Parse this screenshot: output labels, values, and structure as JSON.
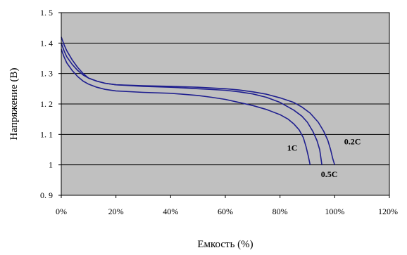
{
  "chart_data": {
    "type": "line",
    "title": "",
    "xlabel": "Емкость (%)",
    "ylabel": "Напряжение (В)",
    "xlim": [
      0,
      120
    ],
    "ylim": [
      0.9,
      1.5
    ],
    "x_ticks": [
      0,
      20,
      40,
      60,
      80,
      100,
      120
    ],
    "x_tick_labels": [
      "0%",
      "20%",
      "40%",
      "60%",
      "80%",
      "100%",
      "120%"
    ],
    "y_ticks": [
      0.9,
      1.0,
      1.1,
      1.2,
      1.3,
      1.4,
      1.5
    ],
    "y_tick_labels": [
      "0. 9",
      "1",
      "1. 1",
      "1. 2",
      "1. 3",
      "1. 4",
      "1. 5"
    ],
    "grid": "horizontal",
    "plot_background": "#c0c0c0",
    "line_color": "#1f1f8f",
    "series": [
      {
        "name": "0.2C",
        "x": [
          0,
          1,
          2,
          4,
          6,
          8,
          10,
          13,
          16,
          20,
          30,
          40,
          50,
          60,
          65,
          70,
          75,
          80,
          85,
          88,
          91,
          94,
          96,
          97.5,
          98.5,
          99.3,
          100
        ],
        "y": [
          1.42,
          1.395,
          1.375,
          1.345,
          1.32,
          1.3,
          1.285,
          1.275,
          1.268,
          1.263,
          1.26,
          1.258,
          1.255,
          1.25,
          1.246,
          1.24,
          1.232,
          1.22,
          1.205,
          1.19,
          1.17,
          1.14,
          1.11,
          1.08,
          1.05,
          1.02,
          1.0
        ]
      },
      {
        "name": "0.5C",
        "x": [
          0,
          1,
          2,
          4,
          6,
          8,
          10,
          13,
          16,
          20,
          30,
          40,
          50,
          60,
          65,
          70,
          75,
          80,
          85,
          88,
          90,
          92,
          93.5,
          94.5,
          95,
          95.3
        ],
        "y": [
          1.4,
          1.375,
          1.355,
          1.33,
          1.31,
          1.295,
          1.285,
          1.275,
          1.268,
          1.263,
          1.258,
          1.255,
          1.25,
          1.245,
          1.24,
          1.233,
          1.222,
          1.205,
          1.18,
          1.16,
          1.14,
          1.11,
          1.08,
          1.05,
          1.02,
          1.0
        ]
      },
      {
        "name": "1C",
        "x": [
          0,
          1,
          2,
          4,
          6,
          8,
          10,
          13,
          16,
          20,
          30,
          40,
          50,
          55,
          60,
          65,
          70,
          75,
          80,
          83,
          85,
          87,
          88.5,
          89.5,
          90.3,
          91
        ],
        "y": [
          1.38,
          1.355,
          1.335,
          1.31,
          1.29,
          1.275,
          1.265,
          1.255,
          1.248,
          1.243,
          1.238,
          1.235,
          1.228,
          1.222,
          1.215,
          1.205,
          1.195,
          1.182,
          1.165,
          1.15,
          1.135,
          1.115,
          1.09,
          1.06,
          1.03,
          1.0
        ]
      }
    ],
    "curve_labels": [
      {
        "text": "0.2C",
        "series": "0.2C",
        "at": [
          106.5,
          1.067
        ]
      },
      {
        "text": "0.5C",
        "series": "0.5C",
        "at": [
          98,
          0.96
        ]
      },
      {
        "text": "1C",
        "series": "1C",
        "at": [
          84.5,
          1.047
        ]
      }
    ]
  }
}
